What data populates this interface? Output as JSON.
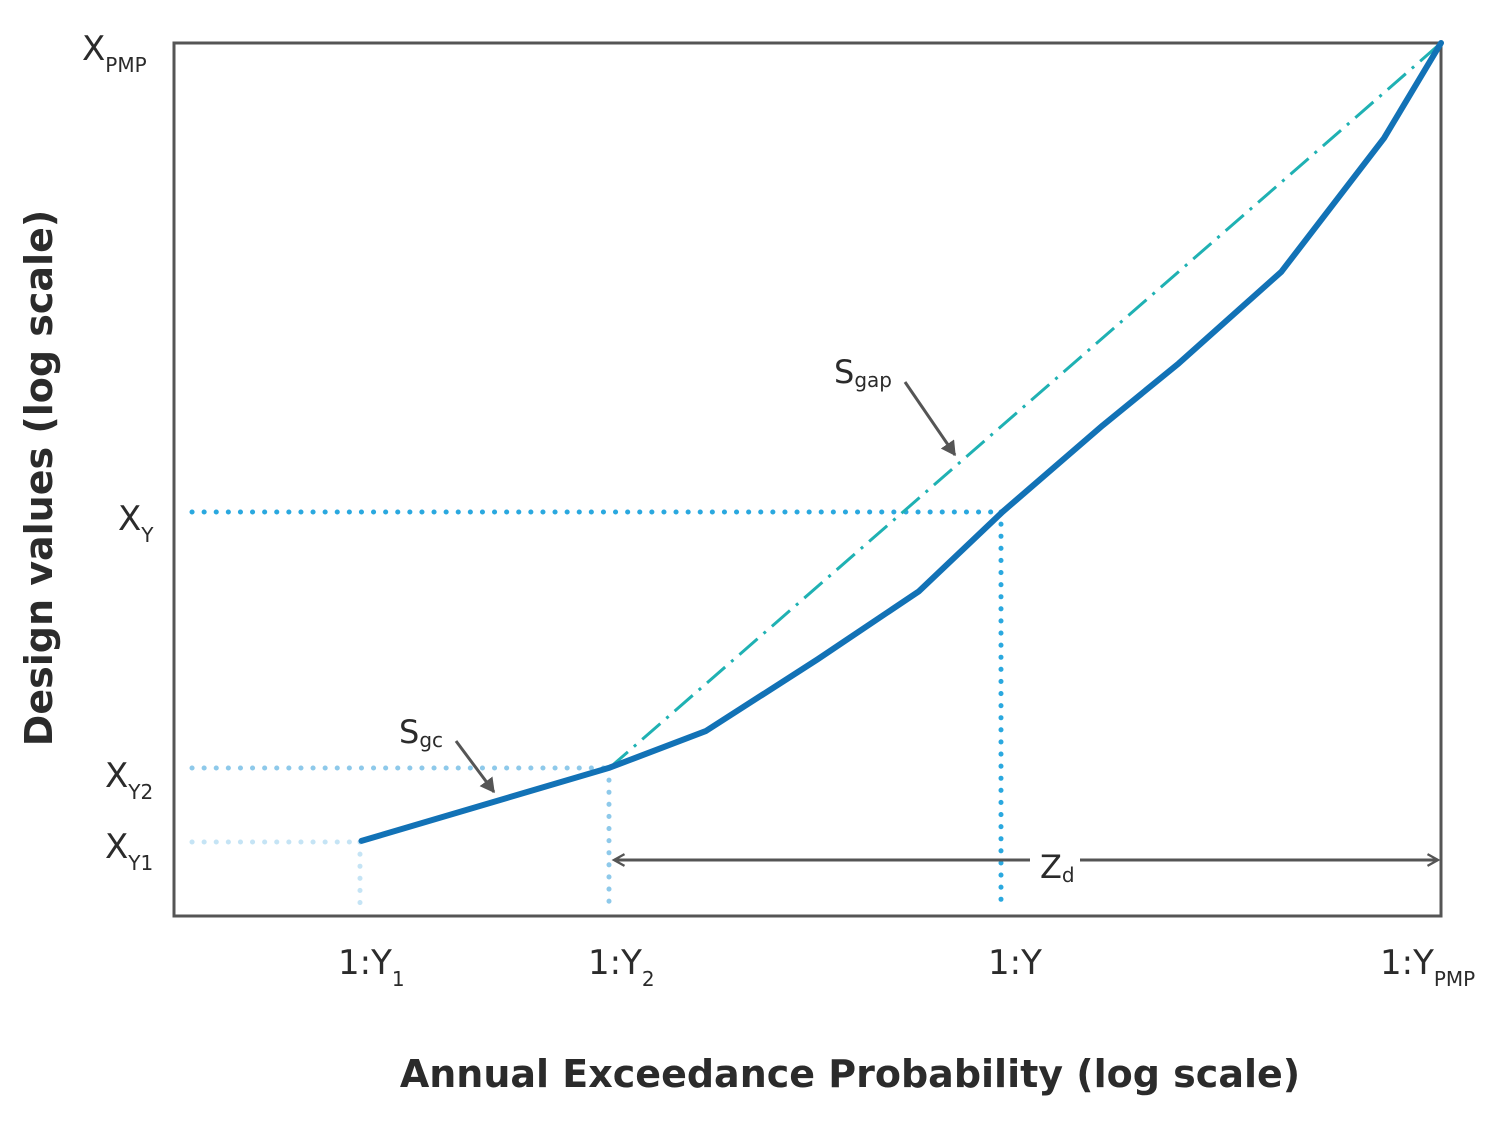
{
  "chart_data": {
    "type": "line",
    "xlabel": "Annual Exceedance Probability (log scale)",
    "ylabel": "Design values (log scale)",
    "x_scale": "log",
    "y_scale": "log",
    "grid": false,
    "x_ticks": [
      {
        "base": "1:Y",
        "sub": "1"
      },
      {
        "base": "1:Y",
        "sub": "2"
      },
      {
        "base": "1:Y",
        "sub": ""
      },
      {
        "base": "1:Y",
        "sub": "PMP"
      }
    ],
    "y_ticks": [
      {
        "base": "X",
        "sub": "PMP"
      },
      {
        "base": "X",
        "sub": "Y"
      },
      {
        "base": "X",
        "sub": "Y2"
      },
      {
        "base": "X",
        "sub": "Y1"
      }
    ],
    "x_positions": [
      "1:Y1",
      "1:Y2",
      "1:Y",
      "1:YPMP"
    ],
    "series": [
      {
        "values": [
          {
            "x": 0.148,
            "y": 0.086
          },
          {
            "x": 0.344,
            "y": 0.17
          },
          {
            "x": 0.42,
            "y": 0.212
          },
          {
            "x": 0.508,
            "y": 0.294
          },
          {
            "x": 0.588,
            "y": 0.372
          },
          {
            "x": 0.654,
            "y": 0.463
          },
          {
            "x": 0.733,
            "y": 0.562
          },
          {
            "x": 0.793,
            "y": 0.633
          },
          {
            "x": 0.874,
            "y": 0.738
          },
          {
            "x": 0.955,
            "y": 0.891
          },
          {
            "x": 1.0,
            "y": 1.0
          }
        ]
      },
      {
        "values": [
          {
            "x": 0.344,
            "y": 0.17
          },
          {
            "x": 1.0,
            "y": 1.0
          }
        ]
      }
    ],
    "annotations": [
      {
        "base": "S",
        "sub": "gc"
      },
      {
        "base": "S",
        "sub": "gap"
      },
      {
        "base": "Z",
        "sub": "d"
      }
    ],
    "colors": {
      "curve": "#1272b6",
      "gap_line": "#1fb1b3",
      "guide_y": "#2aa8df",
      "guide_y2": "#8ec9ea",
      "guide_y1": "#c5e4f5",
      "axis": "#555555",
      "arrow": "#555555"
    }
  }
}
